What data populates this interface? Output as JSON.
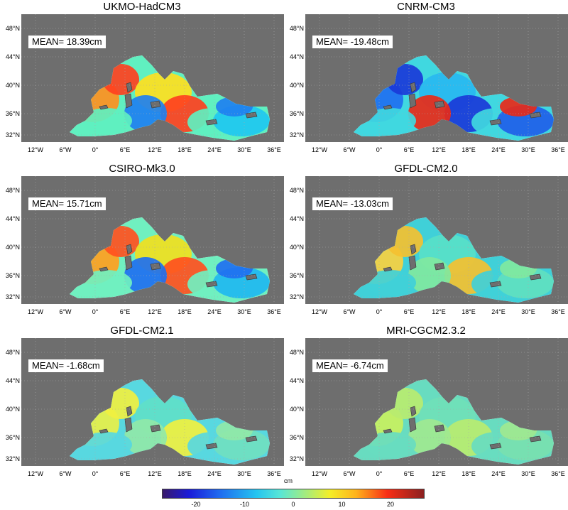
{
  "panels": [
    {
      "title": "UKMO-HadCM3",
      "mean": "MEAN= 18.39cm",
      "palette": [
        "#ff4020",
        "#ff9020",
        "#ffe020",
        "#60f0c0",
        "#20c8f0",
        "#2080f0"
      ]
    },
    {
      "title": "CNRM-CM3",
      "mean": "MEAN= -19.48cm",
      "palette": [
        "#1a3ad8",
        "#2070f0",
        "#28b8f0",
        "#40d8e0",
        "#2060e8",
        "#e82a18"
      ]
    },
    {
      "title": "CSIRO-Mk3.0",
      "mean": "MEAN= 15.71cm",
      "palette": [
        "#ff5020",
        "#ffa020",
        "#f0e020",
        "#70f0c0",
        "#20b8f0",
        "#2070f0"
      ]
    },
    {
      "title": "GFDL-CM2.0",
      "mean": "MEAN= -13.03cm",
      "palette": [
        "#f4c030",
        "#f8d040",
        "#58e0c8",
        "#40d0d8",
        "#60e0c0",
        "#80e8a0"
      ]
    },
    {
      "title": "GFDL-CM2.1",
      "mean": "MEAN= -1.68cm",
      "palette": [
        "#f0f040",
        "#e8f048",
        "#60e0c8",
        "#58d8e0",
        "#70e0c0",
        "#90e8a8"
      ]
    },
    {
      "title": "MRI-CGCM2.3.2",
      "mean": "MEAN= -6.74cm",
      "palette": [
        "#b8ec70",
        "#c8f060",
        "#70e0b8",
        "#68dcc0",
        "#78e0b0",
        "#a0e890"
      ]
    }
  ],
  "lon_labels": [
    "12°W",
    "6°W",
    "0°",
    "6°E",
    "12°E",
    "18°E",
    "24°E",
    "30°E",
    "36°E"
  ],
  "lat_labels": [
    "48°N",
    "44°N",
    "40°N",
    "36°N",
    "32°N"
  ],
  "colorbar": {
    "title": "cm",
    "ticks": [
      "-20",
      "-10",
      "0",
      "10",
      "20"
    ],
    "range": [
      -27,
      27
    ]
  }
}
